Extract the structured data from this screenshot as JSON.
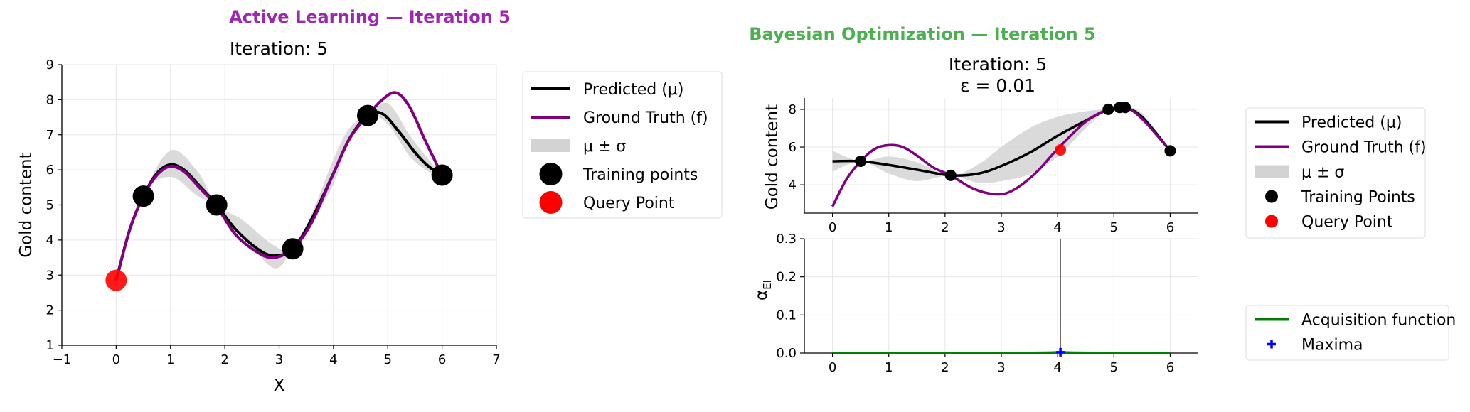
{
  "chart_data": [
    {
      "panel": "active_learning",
      "type": "line",
      "suptitle": "Active Learning — Iteration 5",
      "title": "Iteration: 5",
      "xlabel": "X",
      "ylabel": "Gold content",
      "xlim": [
        -1,
        7
      ],
      "ylim": [
        1,
        9
      ],
      "xticks": [
        -1,
        0,
        1,
        2,
        3,
        4,
        5,
        6,
        7
      ],
      "yticks": [
        1,
        2,
        3,
        4,
        5,
        6,
        7,
        8,
        9
      ],
      "grid": true,
      "legend_position": "outside-right-top",
      "legend": [
        {
          "label": "Predicted (μ)",
          "kind": "line",
          "color": "#000000"
        },
        {
          "label": "Ground Truth (f)",
          "kind": "line",
          "color": "#800080"
        },
        {
          "label": "μ ± σ",
          "kind": "band",
          "color": "#d3d3d3"
        },
        {
          "label": "Training points",
          "kind": "marker",
          "color": "#000000"
        },
        {
          "label": "Query Point",
          "kind": "marker",
          "color": "#ff0000"
        }
      ],
      "series": [
        {
          "name": "Predicted (μ)",
          "color": "#000000",
          "x": [
            0,
            0.25,
            0.5,
            0.75,
            1,
            1.25,
            1.5,
            1.85,
            2.2,
            2.6,
            2.9,
            3.25,
            3.6,
            4,
            4.3,
            4.63,
            4.9,
            5.2,
            5.5,
            5.75,
            6
          ],
          "y": [
            2.85,
            4.3,
            5.25,
            5.9,
            6.15,
            6.0,
            5.6,
            5.0,
            4.3,
            3.75,
            3.55,
            3.75,
            4.6,
            5.9,
            6.9,
            7.55,
            7.6,
            7.1,
            6.5,
            6.1,
            5.85
          ]
        },
        {
          "name": "Ground Truth (f)",
          "color": "#800080",
          "x": [
            0,
            0.25,
            0.5,
            0.75,
            1,
            1.25,
            1.5,
            1.85,
            2.2,
            2.6,
            2.9,
            3.25,
            3.6,
            4,
            4.3,
            4.63,
            4.9,
            5.15,
            5.4,
            5.7,
            6
          ],
          "y": [
            2.85,
            4.3,
            5.25,
            5.85,
            6.1,
            5.95,
            5.55,
            4.95,
            4.15,
            3.65,
            3.5,
            3.75,
            4.5,
            5.9,
            6.9,
            7.55,
            8.0,
            8.2,
            7.8,
            6.8,
            5.85
          ]
        },
        {
          "name": "μ ± σ",
          "color": "#d3d3d3",
          "x": [
            0,
            0.5,
            1,
            1.5,
            1.85,
            2.3,
            2.9,
            3.25,
            3.6,
            4,
            4.3,
            4.63,
            5,
            5.4,
            5.75,
            6
          ],
          "lower": [
            2.85,
            5.25,
            5.8,
            5.25,
            5.0,
            4.2,
            3.2,
            3.75,
            4.5,
            5.6,
            6.9,
            7.55,
            7.3,
            6.4,
            5.95,
            5.85
          ],
          "upper": [
            2.85,
            5.25,
            6.55,
            5.95,
            5.0,
            4.6,
            3.85,
            3.75,
            4.75,
            6.3,
            7.2,
            7.55,
            7.9,
            7.0,
            6.3,
            5.85
          ]
        },
        {
          "name": "Training points",
          "kind": "scatter",
          "color": "#000000",
          "points": [
            [
              0.5,
              5.25
            ],
            [
              1.85,
              5.0
            ],
            [
              3.25,
              3.75
            ],
            [
              4.63,
              7.55
            ],
            [
              6.0,
              5.85
            ]
          ]
        },
        {
          "name": "Query Point",
          "kind": "scatter",
          "color": "#ff0000",
          "points": [
            [
              0.0,
              2.85
            ]
          ]
        }
      ]
    },
    {
      "panel": "bayesian_optimization",
      "type": "line",
      "suptitle": "Bayesian Optimization — Iteration 5",
      "title_lines": [
        "Iteration: 5",
        "ε = 0.01"
      ],
      "subplots": [
        {
          "name": "posterior",
          "ylabel": "Gold content",
          "xlim": [
            -0.5,
            6.5
          ],
          "ylim": [
            2.5,
            8.6
          ],
          "xticks": [
            0,
            1,
            2,
            3,
            4,
            5,
            6
          ],
          "yticks": [
            4,
            6,
            8
          ],
          "grid": true,
          "legend_position": "outside-right",
          "legend": [
            {
              "label": "Predicted (μ)",
              "kind": "line",
              "color": "#000000"
            },
            {
              "label": "Ground Truth (f)",
              "kind": "line",
              "color": "#800080"
            },
            {
              "label": "μ ± σ",
              "kind": "band",
              "color": "#d3d3d3"
            },
            {
              "label": "Training Points",
              "kind": "marker",
              "color": "#000000"
            },
            {
              "label": "Query Point",
              "kind": "marker",
              "color": "#ff0000"
            }
          ],
          "series": [
            {
              "name": "Predicted (μ)",
              "color": "#000000",
              "x": [
                0,
                0.5,
                1,
                1.5,
                2.1,
                2.6,
                3,
                3.5,
                4,
                4.5,
                4.9,
                5.1,
                5.2,
                5.5,
                6
              ],
              "y": [
                5.25,
                5.25,
                5.05,
                4.8,
                4.5,
                4.6,
                5.0,
                5.7,
                6.6,
                7.4,
                8.0,
                8.1,
                8.1,
                7.6,
                5.8
              ]
            },
            {
              "name": "Ground Truth (f)",
              "color": "#800080",
              "x": [
                0,
                0.25,
                0.5,
                0.75,
                1,
                1.25,
                1.5,
                1.8,
                2.1,
                2.5,
                2.9,
                3.2,
                3.6,
                4,
                4.5,
                4.9,
                5.2,
                5.5,
                6
              ],
              "y": [
                2.85,
                4.3,
                5.25,
                5.9,
                6.1,
                6.0,
                5.55,
                4.9,
                4.5,
                3.8,
                3.5,
                3.7,
                4.6,
                5.9,
                7.35,
                8.0,
                8.1,
                7.5,
                5.8
              ]
            },
            {
              "name": "μ ± σ",
              "color": "#d3d3d3",
              "x": [
                0,
                0.5,
                1,
                1.5,
                2.1,
                2.6,
                3,
                3.5,
                4,
                4.5,
                4.9,
                5.2,
                5.5,
                6
              ],
              "lower": [
                4.7,
                5.25,
                4.6,
                4.2,
                4.5,
                4.1,
                4.2,
                4.55,
                5.5,
                7.0,
                8.0,
                8.1,
                7.4,
                5.8
              ],
              "upper": [
                5.8,
                5.25,
                5.5,
                5.2,
                4.5,
                5.1,
                6.0,
                7.0,
                7.6,
                7.9,
                8.0,
                8.1,
                7.8,
                5.8
              ]
            },
            {
              "name": "Training Points",
              "kind": "scatter",
              "color": "#000000",
              "points": [
                [
                  0.5,
                  5.25
                ],
                [
                  2.1,
                  4.5
                ],
                [
                  4.9,
                  8.0
                ],
                [
                  5.1,
                  8.1
                ],
                [
                  5.2,
                  8.1
                ],
                [
                  6.0,
                  5.8
                ]
              ]
            },
            {
              "name": "Query Point",
              "kind": "scatter",
              "color": "#ff0000",
              "points": [
                [
                  4.05,
                  5.85
                ]
              ]
            }
          ]
        },
        {
          "name": "acquisition",
          "ylabel": "αEI",
          "xlim": [
            -0.5,
            6.5
          ],
          "ylim": [
            0.0,
            0.3
          ],
          "xticks": [
            0,
            1,
            2,
            3,
            4,
            5,
            6
          ],
          "yticks": [
            0.0,
            0.1,
            0.2,
            0.3
          ],
          "grid": true,
          "legend_position": "outside-right",
          "legend": [
            {
              "label": "Acquisition function",
              "kind": "line",
              "color": "#008000"
            },
            {
              "label": "Maxima",
              "kind": "marker",
              "color": "#0000ff"
            }
          ],
          "series": [
            {
              "name": "Acquisition function",
              "color": "#008000",
              "x": [
                0,
                1,
                2,
                3,
                3.8,
                4.05,
                4.3,
                5,
                6
              ],
              "y": [
                0.0,
                0.0,
                0.0,
                0.0,
                0.001,
                0.002,
                0.001,
                0.0,
                0.0
              ]
            },
            {
              "name": "Maxima",
              "kind": "scatter",
              "color": "#0000ff",
              "points": [
                [
                  4.05,
                  0.002
                ]
              ]
            }
          ],
          "vline_x": 4.05
        }
      ]
    }
  ]
}
